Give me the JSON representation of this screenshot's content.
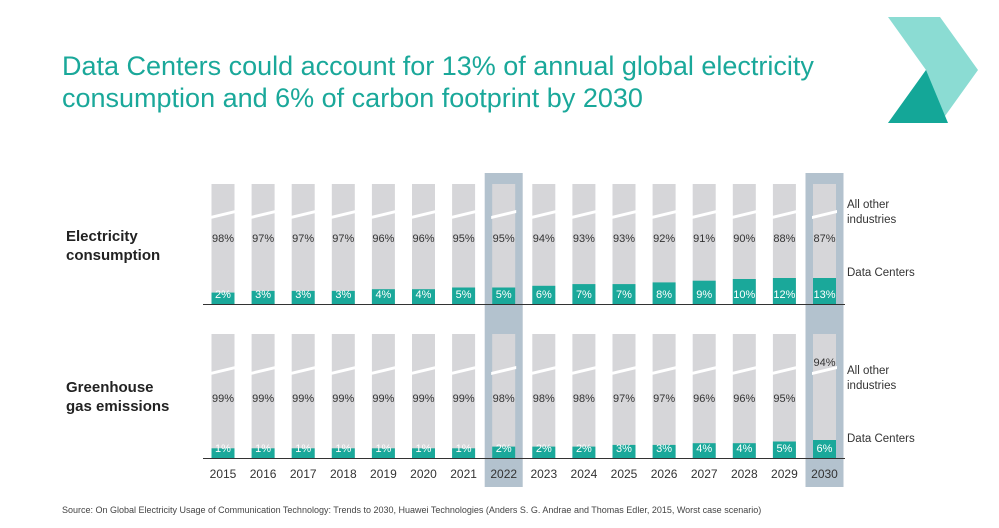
{
  "title": {
    "line1": "Data Centers could account for 13% of annual global electricity",
    "line2": "consumption and 6% of carbon footprint by 2030"
  },
  "colors": {
    "accent": "#1aa89a",
    "bar_grey": "#d6d6d9",
    "highlight": "#b3c2ce",
    "logo_light": "#8bdcd3",
    "logo_dark": "#14a798"
  },
  "chart_data": {
    "type": "bar",
    "stacked": true,
    "categories": [
      "2015",
      "2016",
      "2017",
      "2018",
      "2019",
      "2020",
      "2021",
      "2022",
      "2023",
      "2024",
      "2025",
      "2026",
      "2027",
      "2028",
      "2029",
      "2030"
    ],
    "highlighted_categories": [
      "2022",
      "2030"
    ],
    "panels": [
      {
        "label_line1": "Electricity",
        "label_line2": "consumption",
        "series": [
          {
            "name": "Data Centers",
            "values": [
              2,
              3,
              3,
              3,
              4,
              4,
              5,
              5,
              6,
              7,
              7,
              8,
              9,
              10,
              12,
              13
            ]
          },
          {
            "name": "All other industries",
            "values": [
              98,
              97,
              97,
              97,
              96,
              96,
              95,
              95,
              94,
              93,
              93,
              92,
              91,
              90,
              88,
              87
            ]
          }
        ],
        "legend_top_line1": "All other",
        "legend_top_line2": "industries",
        "legend_bottom": "Data Centers"
      },
      {
        "label_line1": "Greenhouse",
        "label_line2": "gas emissions",
        "series": [
          {
            "name": "Data Centers",
            "values": [
              1,
              1,
              1,
              1,
              1,
              1,
              1,
              2,
              2,
              2,
              3,
              3,
              4,
              4,
              5,
              6
            ]
          },
          {
            "name": "All other industries",
            "values": [
              99,
              99,
              99,
              99,
              99,
              99,
              99,
              98,
              98,
              98,
              97,
              97,
              96,
              96,
              95,
              94
            ]
          }
        ],
        "legend_top_line1": "All other",
        "legend_top_line2": "industries",
        "legend_bottom": "Data Centers"
      }
    ]
  },
  "source": "Source: On Global Electricity Usage of Communication Technology: Trends to 2030, Huawei Technologies (Anders S. G. Andrae and Thomas Edler, 2015, Worst case scenario)"
}
